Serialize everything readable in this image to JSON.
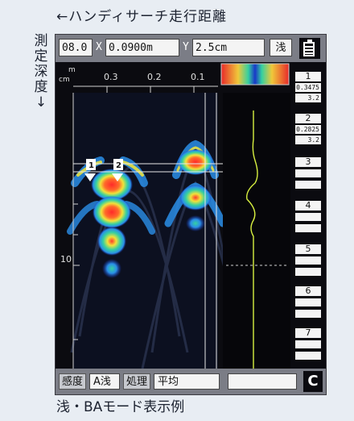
{
  "captions": {
    "top": "←ハンディサーチ走行距離",
    "side": [
      "測",
      "定",
      "深",
      "度",
      "↓"
    ],
    "bottom": "浅・BAモード表示例"
  },
  "topbar": {
    "value1": "08.0",
    "x_label": "X",
    "x_value": "0.0900m",
    "y_label": "Y",
    "y_value": "2.5cm",
    "mode": "浅",
    "battery_icon": "battery-icon"
  },
  "scan": {
    "unit_m": "m",
    "unit_cm": "cm",
    "ticks_top": [
      "0.3",
      "0.2",
      "0.1"
    ],
    "depth_tick": "10",
    "markers": [
      "1",
      "2"
    ],
    "palette": [
      "#1838c8",
      "#2aa0e8",
      "#36d0a0",
      "#e8e040",
      "#e83030"
    ]
  },
  "records": [
    {
      "num": "1",
      "v1": "0.3475",
      "v2": "3.2"
    },
    {
      "num": "2",
      "v1": "0.2825",
      "v2": "3.2"
    },
    {
      "num": "3",
      "v1": "",
      "v2": ""
    },
    {
      "num": "4",
      "v1": "",
      "v2": ""
    },
    {
      "num": "5",
      "v1": "",
      "v2": ""
    },
    {
      "num": "6",
      "v1": "",
      "v2": ""
    },
    {
      "num": "7",
      "v1": "",
      "v2": ""
    }
  ],
  "bottombar": {
    "sens_label": "感度",
    "sens_value": "A浅",
    "proc_label": "処理",
    "proc_value": "平均",
    "empty_value": "",
    "c_button": "C"
  }
}
